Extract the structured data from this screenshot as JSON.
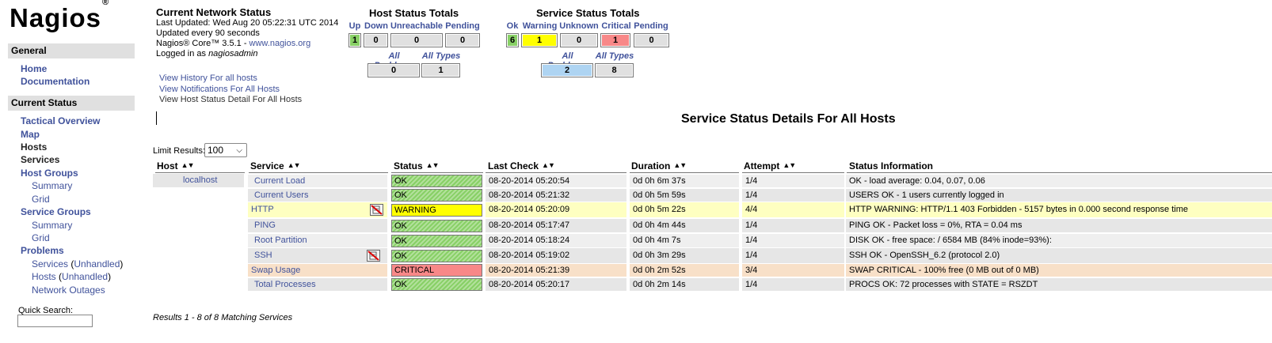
{
  "sidebar": {
    "logo": "Nagios",
    "logo_mark": "®",
    "general_header": "General",
    "general_items": [
      "Home",
      "Documentation"
    ],
    "current_status_header": "Current Status",
    "tactical": "Tactical Overview",
    "map": "Map",
    "hosts": "Hosts",
    "services": "Services",
    "host_groups": "Host Groups",
    "hg_summary": "Summary",
    "hg_grid": "Grid",
    "service_groups": "Service Groups",
    "sg_summary": "Summary",
    "sg_grid": "Grid",
    "problems": "Problems",
    "prob_services": "Services",
    "prob_services_unhandled": "Unhandled",
    "prob_hosts": "Hosts",
    "prob_hosts_unhandled": "Unhandled",
    "network_outages": "Network Outages",
    "quick_search_label": "Quick Search:",
    "quick_search_value": ""
  },
  "network_status": {
    "title": "Current Network Status",
    "last_updated": "Last Updated: Wed Aug 20 05:22:31 UTC 2014",
    "update_interval": "Updated every 90 seconds",
    "version_prefix": "Nagios® Core™ 3.5.1 - ",
    "version_link": "www.nagios.org",
    "logged_prefix": "Logged in as ",
    "logged_user": "nagiosadmin",
    "links": [
      "View History For all hosts",
      "View Notifications For All Hosts",
      "View Host Status Detail For All Hosts"
    ]
  },
  "host_totals": {
    "title": "Host Status Totals",
    "headers": [
      "Up",
      "Down",
      "Unreachable",
      "Pending"
    ],
    "values": [
      "1",
      "0",
      "0",
      "0"
    ],
    "sub_headers": [
      "All Problems",
      "All Types"
    ],
    "sub_values": [
      "0",
      "1"
    ]
  },
  "service_totals": {
    "title": "Service Status Totals",
    "headers": [
      "Ok",
      "Warning",
      "Unknown",
      "Critical",
      "Pending"
    ],
    "values": [
      "6",
      "1",
      "0",
      "1",
      "0"
    ],
    "sub_headers": [
      "All Problems",
      "All Types"
    ],
    "sub_values": [
      "2",
      "8"
    ]
  },
  "page_heading": "Service Status Details For All Hosts",
  "limit": {
    "label": "Limit Results:",
    "value": "100"
  },
  "columns": [
    "Host",
    "Service",
    "Status",
    "Last Check",
    "Duration",
    "Attempt",
    "Status Information"
  ],
  "rows": [
    {
      "host": "localhost",
      "service": "Current Load",
      "status": "OK",
      "last_check": "08-20-2014 05:20:54",
      "duration": "0d 0h 6m 37s",
      "attempt": "1/4",
      "info": "OK - load average: 0.04, 0.07, 0.06"
    },
    {
      "host": "",
      "service": "Current Users",
      "status": "OK",
      "last_check": "08-20-2014 05:21:32",
      "duration": "0d 0h 5m 59s",
      "attempt": "1/4",
      "info": "USERS OK - 1 users currently logged in"
    },
    {
      "host": "",
      "service": "HTTP",
      "status": "WARNING",
      "last_check": "08-20-2014 05:20:09",
      "duration": "0d 0h 5m 22s",
      "attempt": "4/4",
      "info": "HTTP WARNING: HTTP/1.1 403 Forbidden - 5157 bytes in 0.000 second response time"
    },
    {
      "host": "",
      "service": "PING",
      "status": "OK",
      "last_check": "08-20-2014 05:17:47",
      "duration": "0d 0h 4m 44s",
      "attempt": "1/4",
      "info": "PING OK - Packet loss = 0%, RTA = 0.04 ms"
    },
    {
      "host": "",
      "service": "Root Partition",
      "status": "OK",
      "last_check": "08-20-2014 05:18:24",
      "duration": "0d 0h 4m 7s",
      "attempt": "1/4",
      "info": "DISK OK - free space: / 6584 MB (84% inode=93%):"
    },
    {
      "host": "",
      "service": "SSH",
      "status": "OK",
      "last_check": "08-20-2014 05:19:02",
      "duration": "0d 0h 3m 29s",
      "attempt": "1/4",
      "info": "SSH OK - OpenSSH_6.2 (protocol 2.0)"
    },
    {
      "host": "",
      "service": "Swap Usage",
      "status": "CRITICAL",
      "last_check": "08-20-2014 05:21:39",
      "duration": "0d 0h 2m 52s",
      "attempt": "3/4",
      "info": "SWAP CRITICAL - 100% free (0 MB out of 0 MB)"
    },
    {
      "host": "",
      "service": "Total Processes",
      "status": "OK",
      "last_check": "08-20-2014 05:20:17",
      "duration": "0d 0h 2m 14s",
      "attempt": "1/4",
      "info": "PROCS OK: 72 processes with STATE = RSZDT"
    }
  ],
  "results_text": "Results 1 - 8 of 8 Matching Services",
  "colors": {
    "ok": "#88d066",
    "warning": "#ffff00",
    "critical": "#f88888",
    "link": "#40529b",
    "row_even": "#efefef",
    "row_odd": "#e6e6e6",
    "row_warning": "#feffc1",
    "row_critical": "#f8e0c8"
  }
}
